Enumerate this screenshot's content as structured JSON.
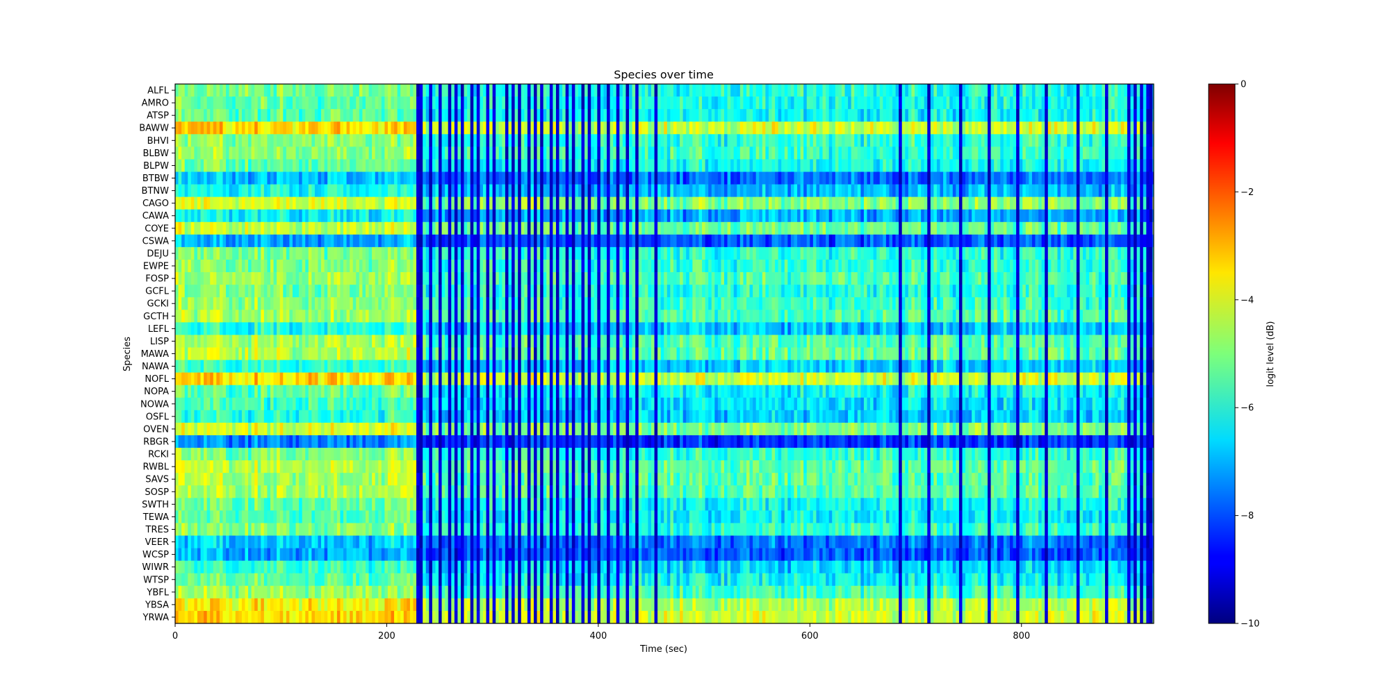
{
  "chart_data": {
    "type": "heatmap",
    "title": "Species over time",
    "xlabel": "Time (sec)",
    "ylabel": "Species",
    "xlim": [
      0,
      925
    ],
    "x_ticks": [
      0,
      200,
      400,
      600,
      800
    ],
    "x_tick_labels": [
      "0",
      "200",
      "400",
      "600",
      "800"
    ],
    "species": [
      "ALFL",
      "AMRO",
      "ATSP",
      "BAWW",
      "BHVI",
      "BLBW",
      "BLPW",
      "BTBW",
      "BTNW",
      "CAGO",
      "CAWA",
      "COYE",
      "CSWA",
      "DEJU",
      "EWPE",
      "FOSP",
      "GCFL",
      "GCKI",
      "GCTH",
      "LEFL",
      "LISP",
      "MAWA",
      "NAWA",
      "NOFL",
      "NOPA",
      "NOWA",
      "OSFL",
      "OVEN",
      "RBGR",
      "RCKI",
      "RWBL",
      "SAVS",
      "SOSP",
      "SWTH",
      "TEWA",
      "TRES",
      "VEER",
      "WCSP",
      "WIWR",
      "WTSP",
      "YBFL",
      "YBSA",
      "YRWA"
    ],
    "species_base_level": [
      -5.6,
      -5.8,
      -5.9,
      -3.9,
      -5.5,
      -5.4,
      -5.8,
      -7.3,
      -6.6,
      -4.6,
      -6.8,
      -4.9,
      -7.6,
      -5.6,
      -5.5,
      -5.2,
      -5.6,
      -5.4,
      -5.2,
      -6.5,
      -5.1,
      -5.0,
      -6.4,
      -3.9,
      -5.9,
      -6.2,
      -6.4,
      -4.7,
      -8.0,
      -5.5,
      -5.0,
      -5.1,
      -5.1,
      -5.8,
      -6.0,
      -5.5,
      -7.3,
      -7.6,
      -6.3,
      -5.9,
      -5.3,
      -4.2,
      -3.9
    ],
    "time_bin_seconds": 3,
    "quiet_phase_end_sec": 228,
    "dark_column_times_sec": [
      228,
      231,
      240,
      249,
      258,
      264,
      270,
      279,
      285,
      294,
      300,
      312,
      318,
      324,
      333,
      339,
      345,
      354,
      360,
      369,
      375,
      384,
      390,
      399,
      408,
      417,
      426,
      435,
      453,
      684,
      711,
      741,
      768,
      795,
      822,
      852,
      879,
      900,
      906,
      912,
      918,
      921
    ],
    "colorbar": {
      "label": "logit level (dB)",
      "min": -10,
      "max": 0,
      "ticks": [
        0,
        -2,
        -4,
        -6,
        -8,
        -10
      ],
      "tick_labels": [
        "0",
        "−2",
        "−4",
        "−6",
        "−8",
        "−10"
      ],
      "colormap": "jet"
    }
  }
}
